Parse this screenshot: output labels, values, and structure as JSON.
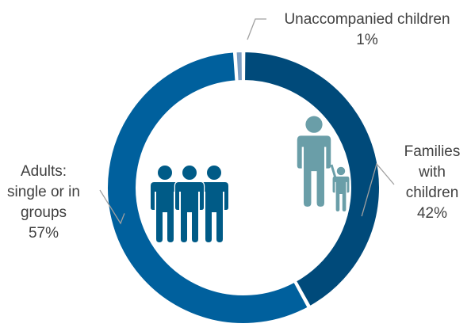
{
  "chart_data": {
    "type": "pie",
    "variant": "donut",
    "legend": "none",
    "slices": [
      {
        "key": "families",
        "label_lines": [
          "Families",
          "with",
          "children"
        ],
        "value": 42,
        "display": "42%",
        "color": "#004a7a",
        "icon": "family-adult-child-icon",
        "icon_color": "#6a9ea8"
      },
      {
        "key": "adults",
        "label_lines": [
          "Adults:",
          "single or in",
          "groups"
        ],
        "value": 57,
        "display": "57%",
        "color": "#00609d",
        "icon": "group-of-three-adults-icon",
        "icon_color": "#005b87"
      },
      {
        "key": "unaccompanied",
        "label_lines": [
          "Unaccompanied children"
        ],
        "value": 1,
        "display": "1%",
        "color": "#7d9ec2",
        "icon": null
      }
    ],
    "separator_color": "#ffffff",
    "leader_line_color": "#a0a0a0"
  }
}
